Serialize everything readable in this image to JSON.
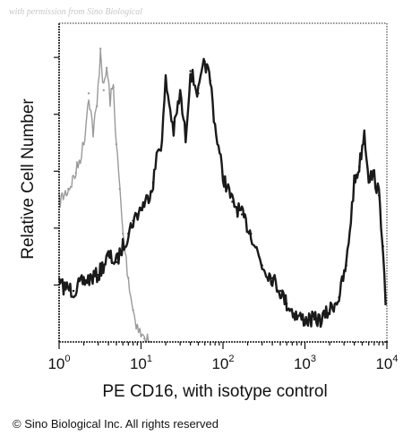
{
  "watermark": "with permission from Sino Biological",
  "copyright": "© Sino Biological Inc. All rights reserved",
  "chart_data": {
    "type": "area",
    "title": "",
    "xlabel": "PE CD16, with isotype control",
    "ylabel": "Relative Cell Number",
    "xscale": "log",
    "xlim": [
      1,
      10000
    ],
    "ylim": [
      0,
      1
    ],
    "x_ticks": [
      {
        "value": 1,
        "base": "10",
        "exp": "0"
      },
      {
        "value": 10,
        "base": "10",
        "exp": "1"
      },
      {
        "value": 100,
        "base": "10",
        "exp": "2"
      },
      {
        "value": 1000,
        "base": "10",
        "exp": "3"
      },
      {
        "value": 10000,
        "base": "10",
        "exp": "4"
      }
    ],
    "grid": false,
    "legend": "none",
    "series": [
      {
        "role": "isotype control",
        "color": "#9a9a9a",
        "x": [
          1,
          1.3,
          1.6,
          2,
          2.3,
          2.6,
          2.9,
          3.2,
          3.5,
          3.8,
          4.2,
          4.6,
          5,
          5.5,
          6,
          7,
          8,
          9,
          10,
          11,
          13
        ],
        "y": [
          0.44,
          0.48,
          0.53,
          0.62,
          0.78,
          0.66,
          0.74,
          0.92,
          0.79,
          0.86,
          0.76,
          0.8,
          0.62,
          0.48,
          0.34,
          0.2,
          0.1,
          0.05,
          0.02,
          0.01,
          0.0
        ]
      },
      {
        "role": "PE CD16",
        "color": "#1a1a1a",
        "x": [
          1,
          1.5,
          2,
          3,
          4,
          5,
          6,
          7,
          8,
          10,
          12,
          14,
          16,
          18,
          20,
          25,
          30,
          35,
          40,
          50,
          60,
          70,
          80,
          100,
          130,
          170,
          220,
          300,
          400,
          500,
          600,
          800,
          1000,
          1300,
          1600,
          2000,
          2600,
          3200,
          4000,
          4600,
          5300,
          6000,
          7000,
          8000,
          9000,
          10000
        ],
        "y": [
          0.18,
          0.16,
          0.19,
          0.21,
          0.27,
          0.25,
          0.3,
          0.34,
          0.38,
          0.42,
          0.45,
          0.5,
          0.6,
          0.63,
          0.82,
          0.66,
          0.78,
          0.64,
          0.85,
          0.78,
          0.88,
          0.82,
          0.68,
          0.52,
          0.44,
          0.4,
          0.34,
          0.24,
          0.2,
          0.16,
          0.12,
          0.08,
          0.07,
          0.07,
          0.07,
          0.1,
          0.14,
          0.24,
          0.5,
          0.55,
          0.66,
          0.52,
          0.52,
          0.46,
          0.3,
          0.0
        ]
      }
    ]
  }
}
